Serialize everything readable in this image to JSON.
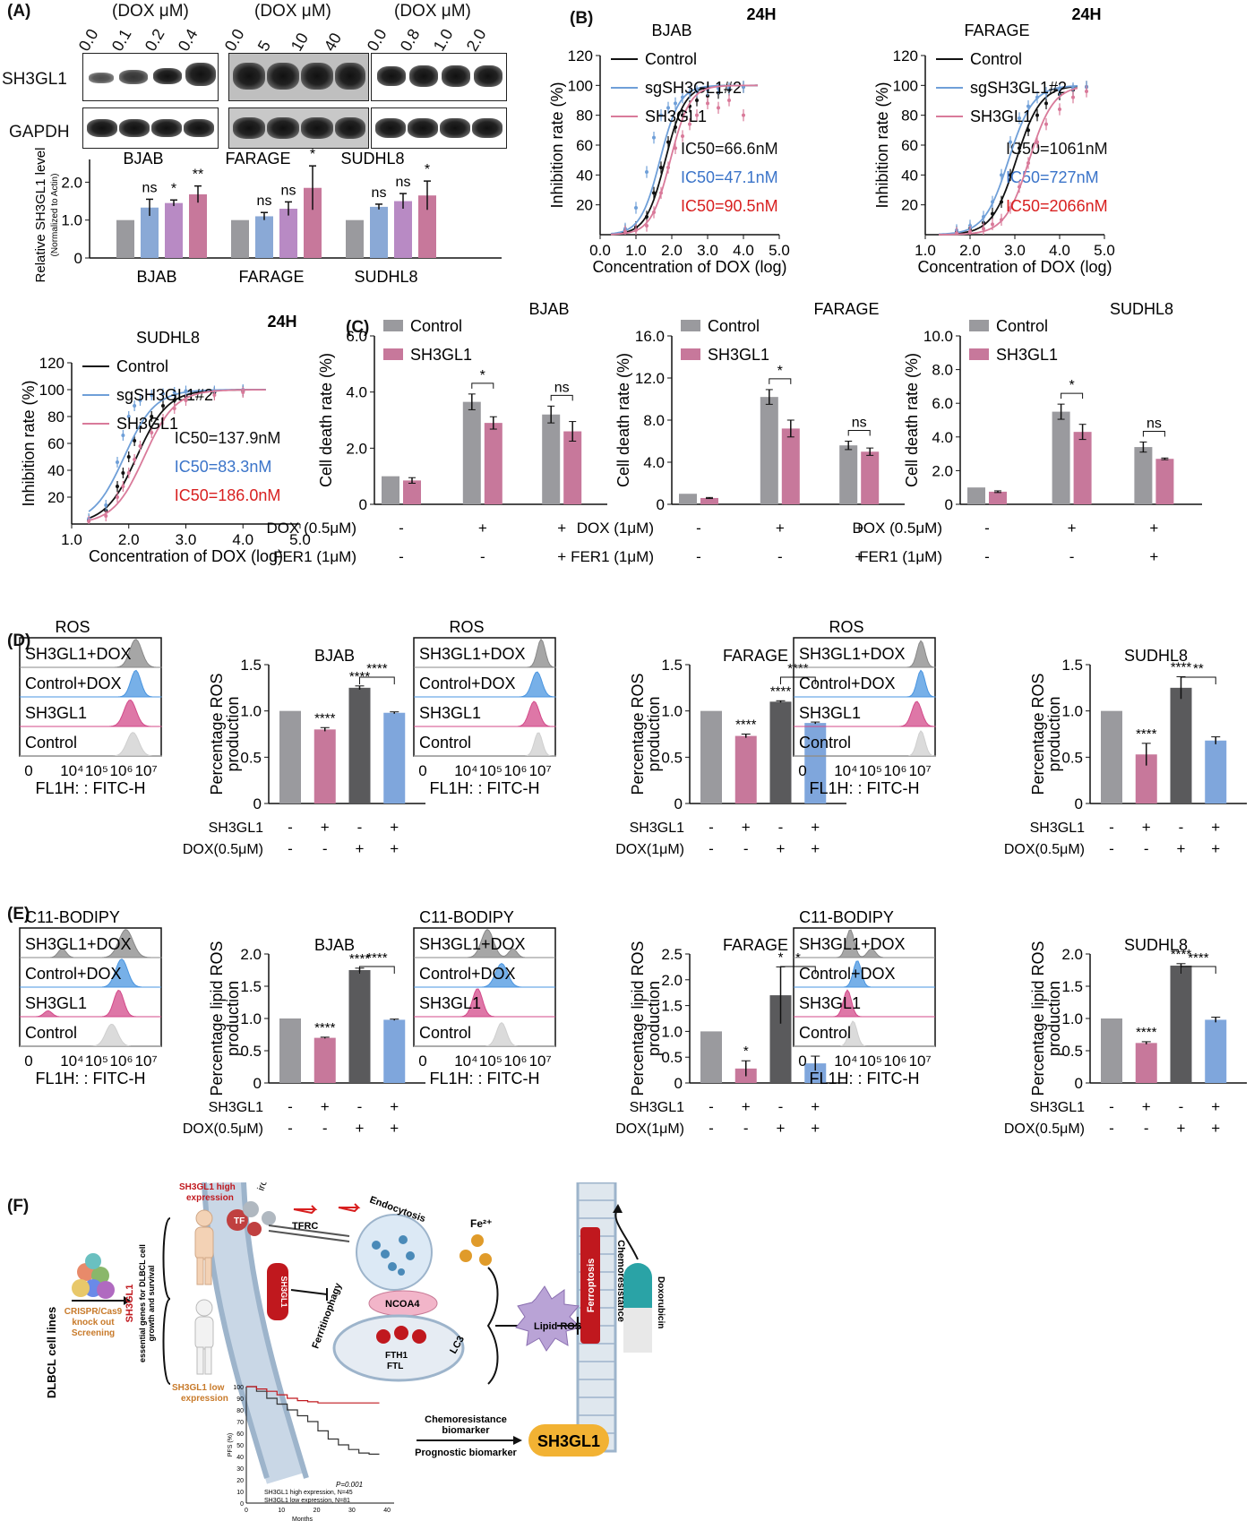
{
  "panels": {
    "A": "(A)",
    "B": "(B)",
    "C": "(C)",
    "D": "(D)",
    "E": "(E)",
    "F": "(F)"
  },
  "blot": {
    "headers": [
      "(DOX μM)",
      "(DOX μM)",
      "(DOX μM)"
    ],
    "doses": [
      [
        "0.0",
        "0.1",
        "0.2",
        "0.4"
      ],
      [
        "0.0",
        "5",
        "10",
        "40"
      ],
      [
        "0.0",
        "0.8",
        "1.0",
        "2.0"
      ]
    ],
    "row_labels": [
      "SH3GL1",
      "GAPDH"
    ]
  },
  "colors": {
    "gray": "#9a9a9e",
    "blue": "#8aa9d6",
    "purple": "#b88ac4",
    "pink": "#c7789b",
    "dark": "#5a5a5c",
    "lightblue": "#7fa6dc",
    "control_line": "#111111",
    "sg_line": "#6f9fd8",
    "sh_line": "#d97a9a",
    "ic_blue": "#3b74c9",
    "ic_red": "#d81f1f"
  },
  "chart_data": [
    {
      "id": "A-bar",
      "type": "bar",
      "ylabel": "Relative SH3GL1 level",
      "ylabel2": "(Normalized to Actin)",
      "yticks": [
        "0",
        "1.0",
        "2.0"
      ],
      "ylim": [
        0,
        2.6
      ],
      "groups": [
        {
          "name": "BJAB",
          "top": "BJAB",
          "values": [
            1.0,
            1.33,
            1.45,
            1.68
          ],
          "err": [
            0,
            0.22,
            0.08,
            0.22
          ],
          "sig": [
            "",
            "ns",
            "*",
            "**"
          ]
        },
        {
          "name": "FARAGE",
          "top": "FARAGE",
          "values": [
            1.0,
            1.1,
            1.3,
            1.85
          ],
          "err": [
            0,
            0.1,
            0.18,
            0.58
          ],
          "sig": [
            "",
            "ns",
            "ns",
            "*"
          ]
        },
        {
          "name": "SUDHL8",
          "top": "SUDHL8",
          "values": [
            1.0,
            1.35,
            1.5,
            1.65
          ],
          "err": [
            0,
            0.07,
            0.2,
            0.38
          ],
          "sig": [
            "",
            "ns",
            "ns",
            "*"
          ]
        }
      ]
    },
    {
      "id": "B-BJAB",
      "type": "line",
      "title": "BJAB",
      "time": "24H",
      "xlabel": "Concentration of DOX (log)",
      "ylabel": "Inhibition rate (%)",
      "xlim": [
        0,
        5
      ],
      "ylim": [
        0,
        120
      ],
      "xticks": [
        "0.0",
        "1.0",
        "2.0",
        "3.0",
        "4.0",
        "5.0"
      ],
      "yticks": [
        "20",
        "40",
        "60",
        "80",
        "100",
        "120"
      ],
      "legend": [
        "Control",
        "sgSH3GL1#2",
        "SH3GL1"
      ],
      "ic50": [
        "IC50=66.6nM",
        "IC50=47.1nM",
        "IC50=90.5nM"
      ],
      "series": [
        {
          "name": "Control",
          "ic50log": 1.82
        },
        {
          "name": "sgSH3GL1#2",
          "ic50log": 1.67
        },
        {
          "name": "SH3GL1",
          "ic50log": 1.96
        }
      ],
      "points": {
        "x": [
          0.7,
          1.0,
          1.3,
          1.5,
          1.7,
          1.9,
          2.1,
          2.3,
          2.5,
          2.7,
          3.0,
          3.3,
          3.6,
          4.0
        ],
        "Control": [
          3,
          5,
          12,
          28,
          45,
          62,
          72,
          80,
          86,
          90,
          93,
          95,
          97,
          99
        ],
        "sgSH3GL1#2": [
          4,
          18,
          42,
          65,
          80,
          85,
          88,
          92,
          95,
          96,
          97,
          98,
          98,
          99
        ],
        "SH3GL1": [
          2,
          3,
          6,
          15,
          28,
          45,
          58,
          66,
          74,
          80,
          88,
          85,
          90,
          80
        ]
      }
    },
    {
      "id": "B-FARAGE",
      "type": "line",
      "title": "FARAGE",
      "time": "24H",
      "xlabel": "Concentration of DOX (log)",
      "ylabel": "Inhibition rate (%)",
      "xlim": [
        1,
        5
      ],
      "ylim": [
        0,
        120
      ],
      "xticks": [
        "1.0",
        "2.0",
        "3.0",
        "4.0",
        "5.0"
      ],
      "yticks": [
        "20",
        "40",
        "60",
        "80",
        "100",
        "120"
      ],
      "legend": [
        "Control",
        "sgSH3GL1#2",
        "SH3GL1"
      ],
      "ic50": [
        "IC50=1061nM",
        "IC50=727nM",
        "IC50=2066nM"
      ],
      "series": [
        {
          "name": "Control",
          "ic50log": 3.03
        },
        {
          "name": "sgSH3GL1#2",
          "ic50log": 2.86
        },
        {
          "name": "SH3GL1",
          "ic50log": 3.32
        }
      ],
      "points": {
        "x": [
          1.7,
          2.0,
          2.3,
          2.5,
          2.7,
          2.9,
          3.1,
          3.3,
          3.5,
          3.7,
          4.0,
          4.3,
          4.6
        ],
        "Control": [
          2,
          4,
          8,
          14,
          22,
          40,
          58,
          70,
          80,
          88,
          94,
          97,
          99
        ],
        "sgSH3GL1#2": [
          3,
          6,
          12,
          22,
          40,
          62,
          78,
          86,
          92,
          95,
          97,
          98,
          99
        ],
        "SH3GL1": [
          1,
          2,
          4,
          7,
          10,
          18,
          32,
          48,
          62,
          74,
          84,
          92,
          96
        ]
      }
    },
    {
      "id": "B-SUDHL8",
      "type": "line",
      "title": "SUDHL8",
      "time": "24H",
      "xlabel": "Concentration of DOX (log)",
      "ylabel": "Inhibition rate (%)",
      "xlim": [
        1,
        5
      ],
      "ylim": [
        0,
        120
      ],
      "xticks": [
        "1.0",
        "2.0",
        "3.0",
        "4.0",
        "5.0"
      ],
      "yticks": [
        "20",
        "40",
        "60",
        "80",
        "100",
        "120"
      ],
      "legend": [
        "Control",
        "sgSH3GL1#2",
        "SH3GL1"
      ],
      "ic50": [
        "IC50=137.9nM",
        "IC50=83.3nM",
        "IC50=186.0nM"
      ],
      "series": [
        {
          "name": "Control",
          "ic50log": 2.14
        },
        {
          "name": "sgSH3GL1#2",
          "ic50log": 1.92
        },
        {
          "name": "SH3GL1",
          "ic50log": 2.27
        }
      ],
      "points": {
        "x": [
          1.3,
          1.6,
          1.8,
          1.9,
          2.0,
          2.1,
          2.2,
          2.4,
          2.6,
          2.8,
          3.0,
          3.5,
          4.0
        ],
        "Control": [
          3,
          10,
          28,
          38,
          50,
          62,
          72,
          80,
          88,
          92,
          95,
          98,
          99
        ],
        "sgSH3GL1#2": [
          4,
          14,
          46,
          66,
          80,
          88,
          92,
          96,
          97,
          98,
          99,
          99,
          100
        ],
        "SH3GL1": [
          2,
          6,
          20,
          28,
          38,
          48,
          58,
          68,
          78,
          86,
          92,
          96,
          98
        ]
      }
    },
    {
      "id": "C-BJAB",
      "type": "bar",
      "title": "BJAB",
      "ylabel": "Cell death rate (%)",
      "ylim": [
        0,
        6
      ],
      "yticks": [
        "0",
        "2.0",
        "4.0",
        "6.0"
      ],
      "legend": [
        "Control",
        "SH3GL1"
      ],
      "groups": [
        {
          "values": [
            1.0,
            0.85
          ],
          "err": [
            0,
            0.1
          ]
        },
        {
          "values": [
            3.65,
            2.9
          ],
          "err": [
            0.28,
            0.22
          ]
        },
        {
          "values": [
            3.2,
            2.6
          ],
          "err": [
            0.3,
            0.35
          ]
        }
      ],
      "sig": [
        "*",
        "ns"
      ],
      "row1": {
        "label": "DOX (0.5μM)",
        "vals": [
          "-",
          "+",
          "+"
        ]
      },
      "row2": {
        "label": "FER1 (1μM)",
        "vals": [
          "-",
          "-",
          "+"
        ]
      }
    },
    {
      "id": "C-FARAGE",
      "type": "bar",
      "title": "FARAGE",
      "ylabel": "Cell death rate (%)",
      "ylim": [
        0,
        16
      ],
      "yticks": [
        "0",
        "4.0",
        "8.0",
        "12.0",
        "16.0"
      ],
      "legend": [
        "Control",
        "SH3GL1"
      ],
      "groups": [
        {
          "values": [
            1.0,
            0.6
          ],
          "err": [
            0,
            0.05
          ]
        },
        {
          "values": [
            10.2,
            7.2
          ],
          "err": [
            0.7,
            0.8
          ]
        },
        {
          "values": [
            5.6,
            5.0
          ],
          "err": [
            0.4,
            0.35
          ]
        }
      ],
      "sig": [
        "*",
        "ns"
      ],
      "row1": {
        "label": "DOX (1μM)",
        "vals": [
          "-",
          "+",
          "+"
        ]
      },
      "row2": {
        "label": "FER1 (1μM)",
        "vals": [
          "-",
          "-",
          "+"
        ]
      }
    },
    {
      "id": "C-SUDHL8",
      "type": "bar",
      "title": "SUDHL8",
      "ylabel": "Cell death rate (%)",
      "ylim": [
        0,
        10
      ],
      "yticks": [
        "0",
        "2.0",
        "4.0",
        "6.0",
        "8.0",
        "10.0"
      ],
      "legend": [
        "Control",
        "SH3GL1"
      ],
      "groups": [
        {
          "values": [
            1.0,
            0.75
          ],
          "err": [
            0,
            0.05
          ]
        },
        {
          "values": [
            5.5,
            4.3
          ],
          "err": [
            0.45,
            0.45
          ]
        },
        {
          "values": [
            3.4,
            2.7
          ],
          "err": [
            0.3,
            0.05
          ]
        }
      ],
      "sig": [
        "*",
        "ns"
      ],
      "row1": {
        "label": "DOX (0.5μM)",
        "vals": [
          "-",
          "+",
          "+"
        ]
      },
      "row2": {
        "label": "FER1 (1μM)",
        "vals": [
          "-",
          "-",
          "+"
        ]
      }
    },
    {
      "id": "D-BJAB",
      "type": "bar",
      "title": "BJAB",
      "ylabel": "Percentage ROS",
      "ylabel2": "production",
      "ylim": [
        0,
        1.5
      ],
      "yticks": [
        "0",
        "0.5",
        "1.0",
        "1.5"
      ],
      "values": [
        1.0,
        0.8,
        1.25,
        0.98
      ],
      "err": [
        0,
        0.02,
        0.02,
        0.01
      ],
      "sig": [
        "",
        "****",
        "****",
        ""
      ],
      "bracket": "****",
      "row1": {
        "label": "SH3GL1",
        "vals": [
          "-",
          "+",
          "-",
          "+"
        ]
      },
      "row2": {
        "label": "DOX(0.5μM)",
        "vals": [
          "-",
          "-",
          "+",
          "+"
        ]
      }
    },
    {
      "id": "D-FARAGE",
      "type": "bar",
      "title": "FARAGE",
      "ylabel": "Percentage ROS",
      "ylabel2": "production",
      "ylim": [
        0,
        1.5
      ],
      "yticks": [
        "0",
        "0.5",
        "1.0",
        "1.5"
      ],
      "values": [
        1.0,
        0.73,
        1.1,
        0.87
      ],
      "err": [
        0,
        0.02,
        0.01,
        0.01
      ],
      "sig": [
        "",
        "****",
        "****",
        ""
      ],
      "bracket": "****",
      "row1": {
        "label": "SH3GL1",
        "vals": [
          "-",
          "+",
          "-",
          "+"
        ]
      },
      "row2": {
        "label": "DOX(1μM)",
        "vals": [
          "-",
          "-",
          "+",
          "+"
        ]
      }
    },
    {
      "id": "D-SUDHL8",
      "type": "bar",
      "title": "SUDHL8",
      "ylabel": "Percentage ROS",
      "ylabel2": "production",
      "ylim": [
        0,
        1.5
      ],
      "yticks": [
        "0",
        "0.5",
        "1.0",
        "1.5"
      ],
      "values": [
        1.0,
        0.53,
        1.25,
        0.68
      ],
      "err": [
        0,
        0.12,
        0.12,
        0.04
      ],
      "sig": [
        "",
        "****",
        "****",
        ""
      ],
      "bracket": "**",
      "row1": {
        "label": "SH3GL1",
        "vals": [
          "-",
          "+",
          "-",
          "+"
        ]
      },
      "row2": {
        "label": "DOX(0.5μM)",
        "vals": [
          "-",
          "-",
          "+",
          "+"
        ]
      }
    },
    {
      "id": "E-BJAB",
      "type": "bar",
      "title": "BJAB",
      "ylabel": "Percentage lipid ROS",
      "ylabel2": "production",
      "ylim": [
        0,
        2.0
      ],
      "yticks": [
        "0",
        "0.5",
        "1.0",
        "1.5",
        "2.0"
      ],
      "values": [
        1.0,
        0.7,
        1.75,
        0.98
      ],
      "err": [
        0,
        0.01,
        0.03,
        0.01
      ],
      "sig": [
        "",
        "****",
        "****",
        ""
      ],
      "bracket": "****",
      "row1": {
        "label": "SH3GL1",
        "vals": [
          "-",
          "+",
          "-",
          "+"
        ]
      },
      "row2": {
        "label": "DOX(0.5μM)",
        "vals": [
          "-",
          "-",
          "+",
          "+"
        ]
      }
    },
    {
      "id": "E-FARAGE",
      "type": "bar",
      "title": "FARAGE",
      "ylabel": "Percentage lipid ROS",
      "ylabel2": "production",
      "ylim": [
        0,
        2.5
      ],
      "yticks": [
        "0",
        "0.5",
        "1.0",
        "1.5",
        "2.0",
        "2.5"
      ],
      "values": [
        1.0,
        0.28,
        1.7,
        0.38
      ],
      "err": [
        0,
        0.15,
        0.55,
        0.14
      ],
      "sig": [
        "",
        "*",
        "*",
        ""
      ],
      "bracket": "*",
      "row1": {
        "label": "SH3GL1",
        "vals": [
          "-",
          "+",
          "-",
          "+"
        ]
      },
      "row2": {
        "label": "DOX(1μM)",
        "vals": [
          "-",
          "-",
          "+",
          "+"
        ]
      }
    },
    {
      "id": "E-SUDHL8",
      "type": "bar",
      "title": "SUDHL8",
      "ylabel": "Percentage lipid ROS",
      "ylabel2": "production",
      "ylim": [
        0,
        2.0
      ],
      "yticks": [
        "0",
        "0.5",
        "1.0",
        "1.5",
        "2.0"
      ],
      "values": [
        1.0,
        0.62,
        1.82,
        0.98
      ],
      "err": [
        0,
        0.02,
        0.03,
        0.04
      ],
      "sig": [
        "",
        "****",
        "****",
        ""
      ],
      "bracket": "****",
      "row1": {
        "label": "SH3GL1",
        "vals": [
          "-",
          "+",
          "-",
          "+"
        ]
      },
      "row2": {
        "label": "DOX(0.5μM)",
        "vals": [
          "-",
          "-",
          "+",
          "+"
        ]
      }
    }
  ],
  "flow": {
    "D": {
      "title": "ROS",
      "rows": [
        "SH3GL1+DOX",
        "Control+DOX",
        "SH3GL1",
        "Control"
      ],
      "xlabel": "FL1H: : FITC-H",
      "ticks": [
        "0",
        "10⁴",
        "10⁵",
        "10⁶",
        "10⁷"
      ]
    },
    "E": {
      "title": "C11-BODIPY",
      "rows": [
        "SH3GL1+DOX",
        "Control+DOX",
        "SH3GL1",
        "Control"
      ],
      "xlabel": "FL1H: : FITC-H",
      "ticks": [
        "0",
        "10⁴",
        "10⁵",
        "10⁶",
        "10⁷"
      ]
    }
  },
  "schematic": {
    "cell_lines": "DLBCL cell lines",
    "crispr": [
      "CRISPR/Cas9",
      "knock out",
      "Screening"
    ],
    "gene": "SH3GL1",
    "essential": [
      "essential genes for DLBCL cell",
      "growth and survival"
    ],
    "high": [
      "SH3GL1 high",
      "expression"
    ],
    "low": [
      "SH3GL1 low",
      "expression"
    ],
    "tf": "TF",
    "iron": "iron",
    "tfrc": "TFRC",
    "endo": "Endocytosis",
    "fe": "Fe²⁺",
    "ferritinophagy": "Ferritinophagy",
    "ncoa4": "NCOA4",
    "fth1": "FTH1",
    "ftl": "FTL",
    "lc3": "LC3",
    "lipid": "Lipid ROS",
    "ferroptosis": "Ferroptosis",
    "chemores": "Chemoresistance",
    "doxo": "Doxorubicin",
    "sh3gl1_mem": "SH3GL1",
    "km": {
      "ylabel": "PFS (%)",
      "xlabel": "Months",
      "yticks": [
        "0",
        "10",
        "20",
        "30",
        "40",
        "50",
        "60",
        "70",
        "80",
        "90",
        "100"
      ],
      "xticks": [
        "0",
        "10",
        "20",
        "30",
        "40"
      ],
      "p": "P=0.001",
      "high": "SH3GL1 high expression, N=45",
      "low": "SH3GL1 low expression, N=81",
      "high_curve": [
        100,
        96,
        90,
        85,
        80,
        75,
        70,
        62,
        55,
        50,
        46,
        43,
        42,
        42
      ],
      "low_curve": [
        100,
        98,
        96,
        93,
        90,
        88,
        87,
        86,
        86,
        86,
        86,
        86,
        86,
        86
      ]
    },
    "biomarker1": [
      "Chemoresistance",
      "biomarker"
    ],
    "biomarker2": "Prognostic biomarker",
    "badge": "SH3GL1"
  }
}
